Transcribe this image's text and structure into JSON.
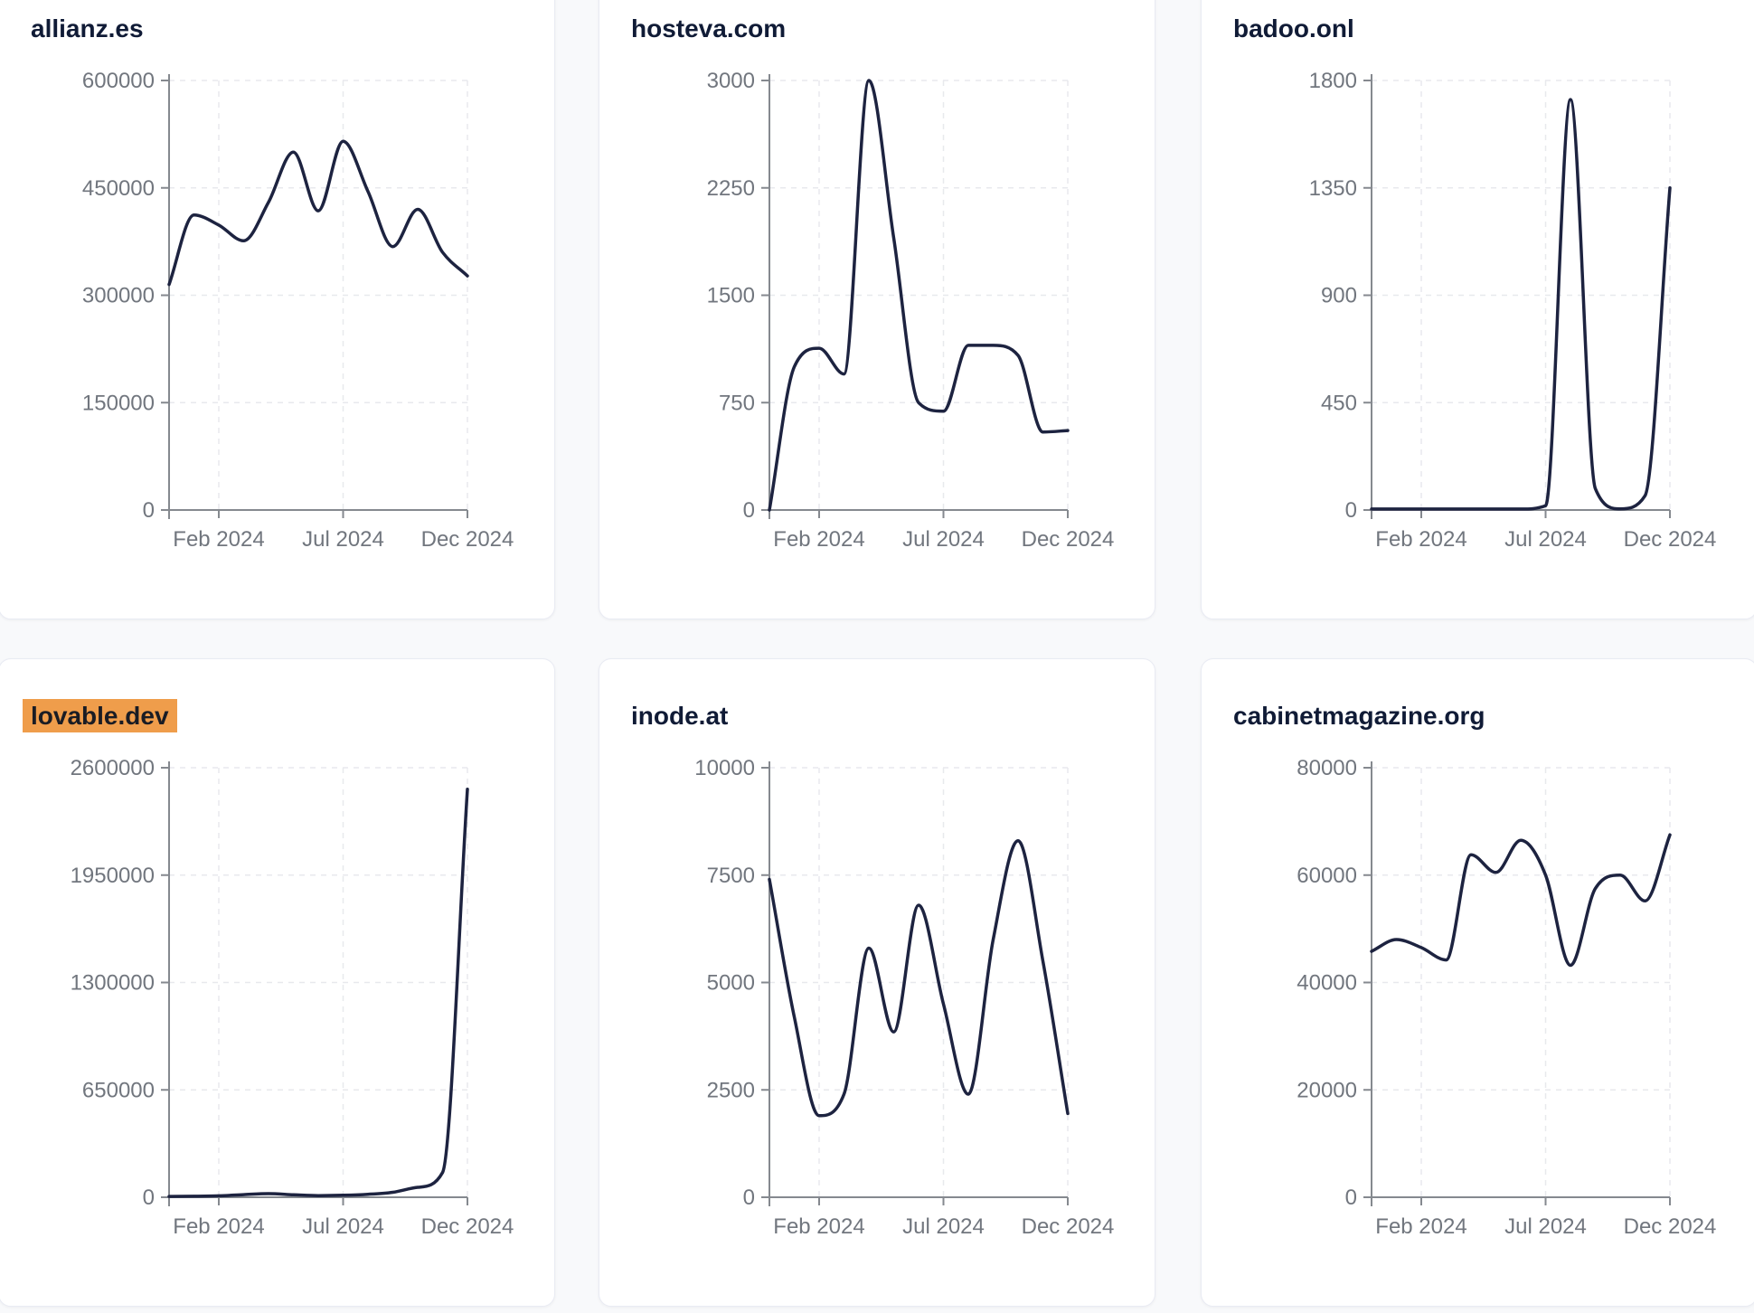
{
  "style": {
    "background": "#f8f9fb",
    "card_background": "#ffffff",
    "card_border": "#e9ebf3",
    "line_color": "#1d2340",
    "title_color": "#101b36",
    "axis_color": "#85898f",
    "grid_color": "#e8e9ed",
    "tick_label_color": "#71767e",
    "highlight_color": "#ef9d4b",
    "highlight_text_color": "#1a1c24"
  },
  "chart_data": [
    {
      "type": "line",
      "title": "allianz.es",
      "title_highlight": false,
      "x_range": [
        "Dec 2023",
        "Dec 2024"
      ],
      "x_ticks": [
        {
          "label": "Feb 2024",
          "month_index": 2
        },
        {
          "label": "Jul 2024",
          "month_index": 7
        },
        {
          "label": "Dec 2024",
          "month_index": 12
        }
      ],
      "y_ticks": [
        0,
        150000,
        300000,
        450000,
        600000
      ],
      "ylim": [
        0,
        600000
      ],
      "grid": true,
      "legend": false,
      "values": [
        315000,
        412000,
        398000,
        376000,
        430000,
        500000,
        418000,
        515000,
        445000,
        368000,
        420000,
        360000,
        327000
      ]
    },
    {
      "type": "line",
      "title": "hosteva.com",
      "title_highlight": false,
      "x_range": [
        "Dec 2023",
        "Dec 2024"
      ],
      "x_ticks": [
        {
          "label": "Feb 2024",
          "month_index": 2
        },
        {
          "label": "Jul 2024",
          "month_index": 7
        },
        {
          "label": "Dec 2024",
          "month_index": 12
        }
      ],
      "y_ticks": [
        0,
        750,
        1500,
        2250,
        3000
      ],
      "ylim": [
        0,
        3000
      ],
      "grid": true,
      "legend": false,
      "values": [
        0,
        1000,
        1130,
        950,
        3000,
        1900,
        750,
        690,
        1150,
        1150,
        1080,
        545,
        555
      ]
    },
    {
      "type": "line",
      "title": "badoo.onl",
      "title_highlight": false,
      "x_range": [
        "Dec 2023",
        "Dec 2024"
      ],
      "x_ticks": [
        {
          "label": "Feb 2024",
          "month_index": 2
        },
        {
          "label": "Jul 2024",
          "month_index": 7
        },
        {
          "label": "Dec 2024",
          "month_index": 12
        }
      ],
      "y_ticks": [
        0,
        450,
        900,
        1350,
        1800
      ],
      "ylim": [
        0,
        1800
      ],
      "grid": true,
      "legend": false,
      "values": [
        4,
        4,
        4,
        4,
        4,
        4,
        4,
        18,
        1720,
        90,
        5,
        60,
        1350
      ]
    },
    {
      "type": "line",
      "title": "lovable.dev",
      "title_highlight": true,
      "x_range": [
        "Dec 2023",
        "Dec 2024"
      ],
      "x_ticks": [
        {
          "label": "Feb 2024",
          "month_index": 2
        },
        {
          "label": "Jul 2024",
          "month_index": 7
        },
        {
          "label": "Dec 2024",
          "month_index": 12
        }
      ],
      "y_ticks": [
        0,
        650000,
        1300000,
        1950000,
        2600000
      ],
      "ylim": [
        0,
        2600000
      ],
      "grid": true,
      "legend": false,
      "values": [
        5000,
        6000,
        9000,
        16000,
        22000,
        15000,
        10000,
        12000,
        18000,
        30000,
        60000,
        150000,
        2470000
      ]
    },
    {
      "type": "line",
      "title": "inode.at",
      "title_highlight": false,
      "x_range": [
        "Dec 2023",
        "Dec 2024"
      ],
      "x_ticks": [
        {
          "label": "Feb 2024",
          "month_index": 2
        },
        {
          "label": "Jul 2024",
          "month_index": 7
        },
        {
          "label": "Dec 2024",
          "month_index": 12
        }
      ],
      "y_ticks": [
        0,
        2500,
        5000,
        7500,
        10000
      ],
      "ylim": [
        0,
        10000
      ],
      "grid": true,
      "legend": false,
      "values": [
        7400,
        4200,
        1900,
        2400,
        5800,
        3850,
        6800,
        4500,
        2400,
        6000,
        8300,
        5500,
        1950
      ]
    },
    {
      "type": "line",
      "title": "cabinetmagazine.org",
      "title_highlight": false,
      "x_range": [
        "Dec 2023",
        "Dec 2024"
      ],
      "x_ticks": [
        {
          "label": "Feb 2024",
          "month_index": 2
        },
        {
          "label": "Jul 2024",
          "month_index": 7
        },
        {
          "label": "Dec 2024",
          "month_index": 12
        }
      ],
      "y_ticks": [
        0,
        20000,
        40000,
        60000,
        80000
      ],
      "ylim": [
        0,
        80000
      ],
      "grid": true,
      "legend": false,
      "values": [
        45800,
        48000,
        46500,
        44200,
        63800,
        60500,
        66500,
        60000,
        43200,
        57500,
        60000,
        55200,
        67500
      ]
    }
  ]
}
